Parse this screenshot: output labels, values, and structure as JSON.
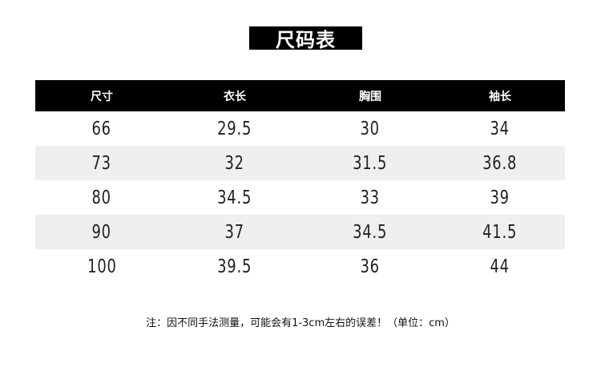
{
  "title": "尺码表",
  "table": {
    "headers": [
      "尺寸",
      "衣长",
      "胸围",
      "袖长"
    ],
    "rows": [
      [
        "66",
        "29.5",
        "30",
        "34"
      ],
      [
        "73",
        "32",
        "31.5",
        "36.8"
      ],
      [
        "80",
        "34.5",
        "33",
        "39"
      ],
      [
        "90",
        "37",
        "34.5",
        "41.5"
      ],
      [
        "100",
        "39.5",
        "36",
        "44"
      ]
    ]
  },
  "note": "注：因不同手法测量，可能会有1-3cm左右的误差！（单位：cm）",
  "colors": {
    "header_bg": "#000000",
    "alt_row_bg": "#efefef"
  }
}
